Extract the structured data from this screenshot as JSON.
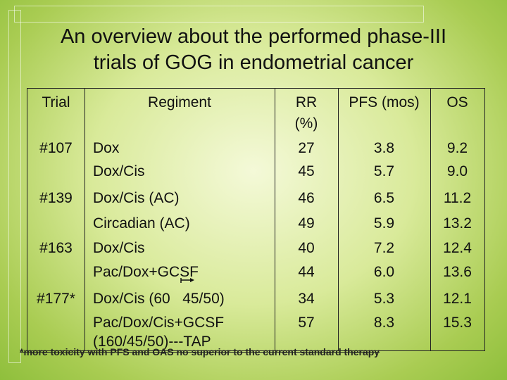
{
  "title": {
    "line1": "An overview about the performed phase-III",
    "line2": "trials of GOG in endometrial cancer"
  },
  "table": {
    "headers": {
      "trial": "Trial",
      "regiment": "Regiment",
      "rr_line1": "RR",
      "rr_line2": "(%)",
      "pfs": "PFS (mos)",
      "os": "OS"
    },
    "rows": [
      {
        "trial": "#107",
        "arms": [
          {
            "regiment": "Dox",
            "rr": "27",
            "pfs": "3.8",
            "os": "9.2"
          },
          {
            "regiment": "Dox/Cis",
            "rr": "45",
            "pfs": "5.7",
            "os": "9.0"
          }
        ]
      },
      {
        "trial": "#139",
        "arms": [
          {
            "regiment": "Dox/Cis (AC)",
            "rr": "46",
            "pfs": "6.5",
            "os": "11.2"
          },
          {
            "regiment": "Circadian (AC)",
            "rr": "49",
            "pfs": "5.9",
            "os": "13.2"
          }
        ]
      },
      {
        "trial": "#163",
        "arms": [
          {
            "regiment": "Dox/Cis",
            "rr": "40",
            "pfs": "7.2",
            "os": "12.4"
          },
          {
            "regiment": "Pac/Dox+GCSF",
            "rr": "44",
            "pfs": "6.0",
            "os": "13.6"
          }
        ]
      },
      {
        "trial": "#177*",
        "arms": [
          {
            "regiment": "Dox/Cis (60   45/50)",
            "rr": "34",
            "pfs": "5.3",
            "os": "12.1"
          },
          {
            "regiment": "Pac/Dox/Cis+GCSF",
            "rr": "57",
            "pfs": "8.3",
            "os": "15.3"
          }
        ],
        "extra_line": "(160/45/50)---TAP"
      }
    ]
  },
  "footnote": "*more toxicity  with PFS and OAS no superior to the current standard therapy"
}
